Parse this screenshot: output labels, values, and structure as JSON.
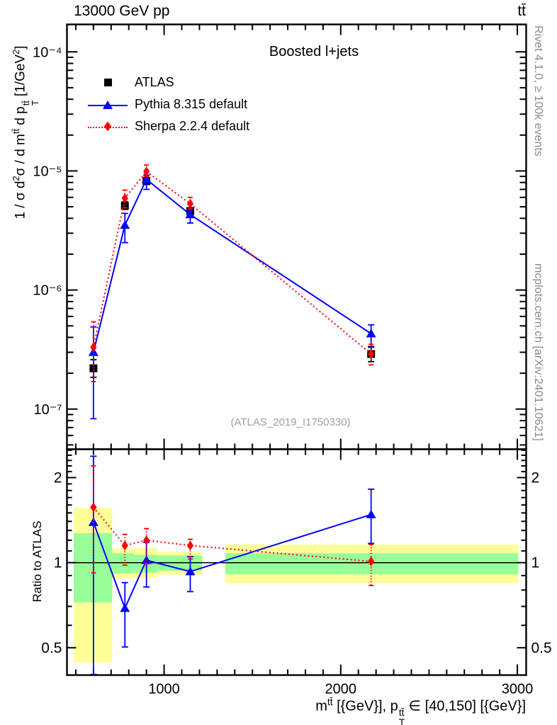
{
  "header": {
    "left": "13000 GeV pp",
    "right": "tt̄"
  },
  "plot": {
    "title": "Boosted l+jets",
    "watermark": "(ATLAS_2019_I1750330)",
    "side_note_top": "Rivet 4.1.0, ≥ 100k events",
    "side_note_bottom": "mcplots.cern.ch [arXiv:2401.10621]"
  },
  "legend": {
    "entries": [
      {
        "label": "ATLAS",
        "marker": "square",
        "color": "#000000",
        "line": "none"
      },
      {
        "label": "Pythia 8.315 default",
        "marker": "triangle",
        "color": "#0000ff",
        "line": "solid"
      },
      {
        "label": "Sherpa 2.2.4 default",
        "marker": "diamond",
        "color": "#ff0000",
        "line": "dotted"
      }
    ]
  },
  "axis_titles": {
    "x_tokens": [
      {
        "t": "m"
      },
      {
        "sup": "tt̄"
      },
      {
        "t": " [{GeV}], p"
      },
      {
        "stack": [
          "tt̄",
          "T"
        ]
      },
      {
        "t": " ∈ [40,150] [{GeV}]"
      }
    ],
    "y_tokens": [
      {
        "t": "1 / σ d"
      },
      {
        "sup": "2"
      },
      {
        "t": "σ / d m"
      },
      {
        "sup": "tt̄"
      },
      {
        "t": " d p"
      },
      {
        "stack": [
          "tt̄",
          "T"
        ]
      },
      {
        "t": " [1/GeV"
      },
      {
        "sup": "2"
      },
      {
        "t": "]"
      }
    ]
  },
  "chart_data": [
    {
      "type": "line",
      "panel": "main",
      "title": "Boosted l+jets",
      "x_axis": {
        "scale": "linear",
        "lim": [
          450,
          3050
        ],
        "minor_step": 100,
        "major_step": 1000
      },
      "y_axis": {
        "scale": "log",
        "lim": [
          4.6e-08,
          0.00017
        ],
        "ticks": [
          {
            "v": 0.0001,
            "label": "10⁻⁴"
          },
          {
            "v": 1e-05,
            "label": "10⁻⁵"
          },
          {
            "v": 1e-06,
            "label": "10⁻⁶"
          },
          {
            "v": 1e-07,
            "label": "10⁻⁷"
          }
        ]
      },
      "series": [
        {
          "name": "ATLAS",
          "marker": "square",
          "color": "#000000",
          "line": "none",
          "x": [
            600,
            778,
            900,
            1148,
            2172
          ],
          "y": [
            2.2e-07,
            5.1e-06,
            8.2e-06,
            4.6e-06,
            2.9e-07
          ],
          "ylo": [
            1.85e-07,
            4.75e-06,
            7.7e-06,
            4.3e-06,
            2.5e-07
          ],
          "yhi": [
            2.6e-07,
            5.5e-06,
            8.8e-06,
            4.9e-06,
            3.35e-07
          ]
        },
        {
          "name": "Pythia 8.315 default",
          "marker": "triangle",
          "color": "#0000ff",
          "line": "solid",
          "x": [
            600,
            778,
            900,
            1148,
            2172
          ],
          "y": [
            3e-07,
            3.5e-06,
            8.5e-06,
            4.3e-06,
            4.3e-07
          ],
          "ylo": [
            8.3e-08,
            2.5e-06,
            7e-06,
            3.65e-06,
            3.3e-07
          ],
          "yhi": [
            4.9e-07,
            4.4e-06,
            9.2e-06,
            4.7e-06,
            5.1e-07
          ]
        },
        {
          "name": "Sherpa 2.2.4 default",
          "marker": "diamond",
          "color": "#ff0000",
          "line": "dotted",
          "x": [
            600,
            778,
            900,
            1148,
            2172
          ],
          "y": [
            3.3e-07,
            5.9e-06,
            9.9e-06,
            5.3e-06,
            2.9e-07
          ],
          "ylo": [
            1.7e-07,
            4.9e-06,
            9e-06,
            4.8e-06,
            2.35e-07
          ],
          "yhi": [
            5.4e-07,
            6.9e-06,
            1.12e-05,
            6e-06,
            3.5e-07
          ]
        }
      ]
    },
    {
      "type": "ratio",
      "panel": "ratio",
      "ylabel": "Ratio to ATLAS",
      "ref_line": 1,
      "y_axis": {
        "scale": "log",
        "lim": [
          0.4,
          2.52
        ],
        "ticks": [
          {
            "v": 2,
            "label": "2"
          },
          {
            "v": 1,
            "label": "1"
          },
          {
            "v": 0.5,
            "label": "0.5"
          }
        ],
        "minor_from": 0.4,
        "minor_to": 2.5,
        "minor_step": 0.1
      },
      "x_axis": {
        "ticks": [
          {
            "v": 1000,
            "label": "1000"
          },
          {
            "v": 2000,
            "label": "2000"
          },
          {
            "v": 3000,
            "label": "3000"
          }
        ]
      },
      "band_colors": {
        "yellow": "#ffff99",
        "green": "#99ff99"
      },
      "bands": [
        {
          "x1": 488,
          "x2": 706,
          "yellow": [
            0.443,
            1.563
          ],
          "green": [
            0.723,
            1.272
          ]
        },
        {
          "x1": 706,
          "x2": 831,
          "yellow": [
            0.88,
            1.122
          ],
          "green": [
            0.916,
            1.08
          ]
        },
        {
          "x1": 831,
          "x2": 961,
          "yellow": [
            0.885,
            1.129
          ],
          "green": [
            0.921,
            1.066
          ]
        },
        {
          "x1": 961,
          "x2": 1215,
          "yellow": [
            0.906,
            1.092
          ],
          "green": [
            0.936,
            1.06
          ]
        },
        {
          "x1": 1346,
          "x2": 3005,
          "yellow": [
            0.846,
            1.158
          ],
          "green": [
            0.909,
            1.08
          ]
        }
      ],
      "series": [
        {
          "name": "Pythia 8.315 default",
          "marker": "triangle",
          "color": "#0000ff",
          "line": "solid",
          "x": [
            600,
            778,
            900,
            1148,
            2172
          ],
          "y": [
            1.39,
            0.69,
            1.02,
            0.93,
            1.48
          ],
          "ylo": [
            0.402,
            0.503,
            0.82,
            0.79,
            1.17
          ],
          "yhi": [
            2.38,
            0.85,
            1.18,
            1.05,
            1.82
          ]
        },
        {
          "name": "Sherpa 2.2.4 default",
          "marker": "diamond",
          "color": "#ff0000",
          "line": "dotted",
          "x": [
            600,
            778,
            900,
            1148,
            2172
          ],
          "y": [
            1.57,
            1.15,
            1.2,
            1.15,
            1.01
          ],
          "ylo": [
            0.92,
            0.98,
            0.99,
            1.03,
            0.83
          ],
          "yhi": [
            2.2,
            1.26,
            1.32,
            1.21,
            1.16
          ]
        }
      ]
    }
  ]
}
